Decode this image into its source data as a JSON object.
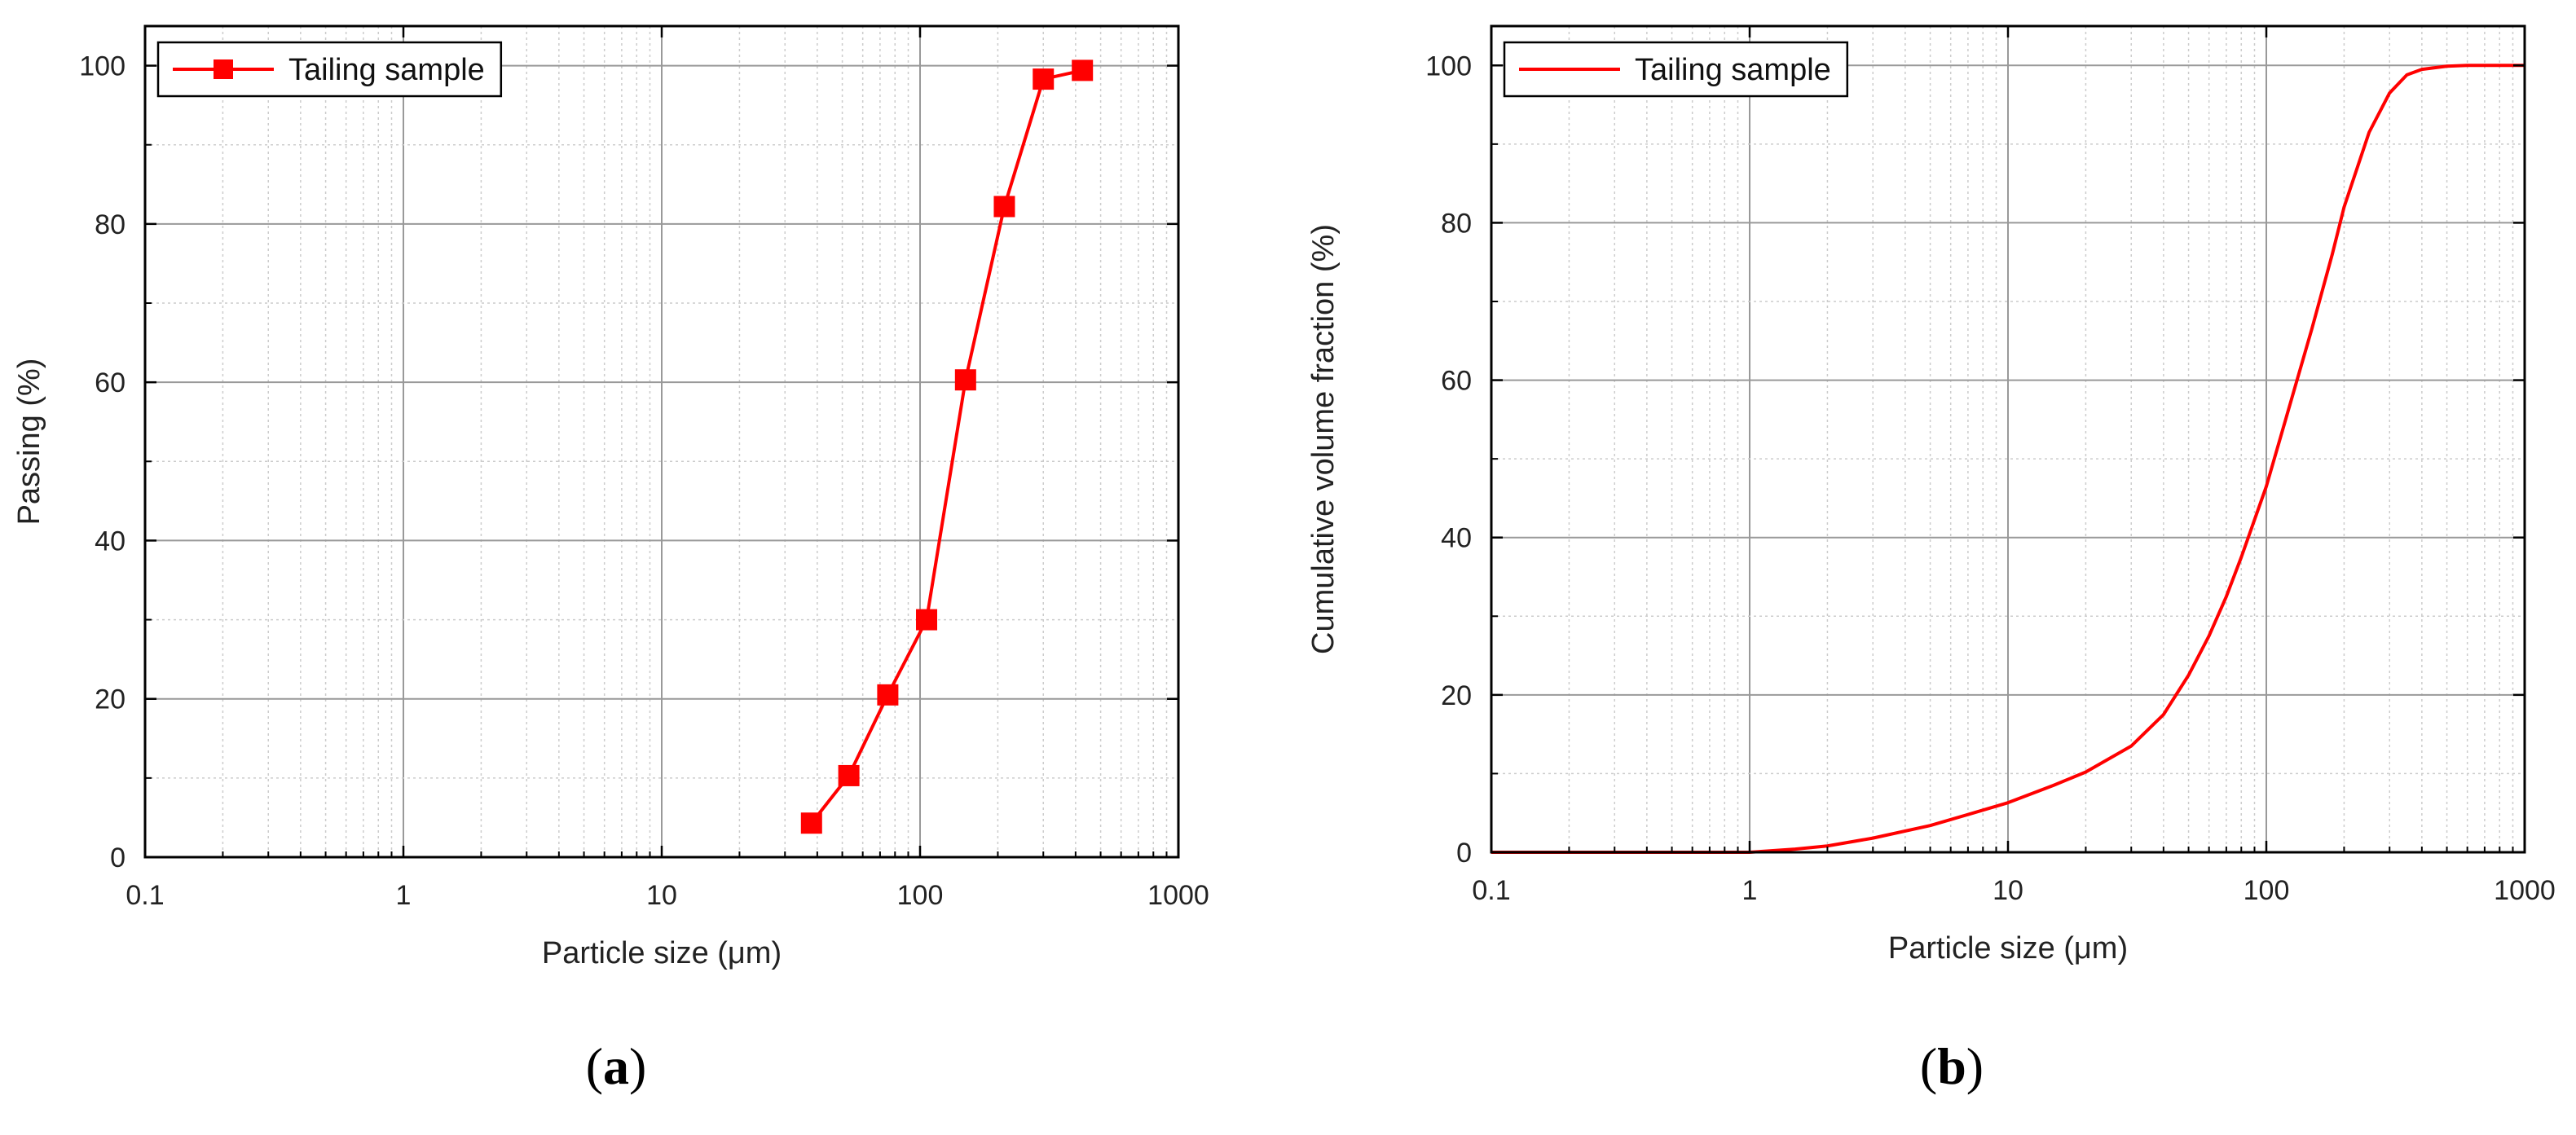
{
  "colors": {
    "series": "#ff0000",
    "grid_major": "#999999",
    "grid_minor": "#cccccc",
    "axis": "#000000"
  },
  "chart_data": [
    {
      "panel": "a",
      "panel_label": {
        "open": "(",
        "letter": "a",
        "close": ")"
      },
      "type": "line",
      "markers": true,
      "xscale": "log",
      "xlim": [
        0.1,
        1000
      ],
      "ylim": [
        0,
        105
      ],
      "xticks": [
        0.1,
        1,
        10,
        100,
        1000
      ],
      "xtick_labels": [
        "0.1",
        "1",
        "10",
        "100",
        "1000"
      ],
      "yticks": [
        0,
        20,
        40,
        60,
        80,
        100
      ],
      "ytick_labels": [
        "0",
        "20",
        "40",
        "60",
        "80",
        "100"
      ],
      "xlabel": "Particle size (μm)",
      "ylabel": "Passing (%)",
      "grid": true,
      "legend": {
        "position": "top-left",
        "entries": [
          "Tailing sample"
        ]
      },
      "series": [
        {
          "name": "Tailing sample",
          "x": [
            38,
            53,
            75,
            106,
            150,
            212,
            300,
            425
          ],
          "y": [
            4.3,
            10.3,
            20.5,
            30.0,
            60.3,
            82.2,
            98.3,
            99.4
          ]
        }
      ]
    },
    {
      "panel": "b",
      "panel_label": {
        "open": "(",
        "letter": "b",
        "close": ")"
      },
      "type": "line",
      "markers": false,
      "xscale": "log",
      "xlim": [
        0.1,
        1000
      ],
      "ylim": [
        0,
        105
      ],
      "xticks": [
        0.1,
        1,
        10,
        100,
        1000
      ],
      "xtick_labels": [
        "0.1",
        "1",
        "10",
        "100",
        "1000"
      ],
      "yticks": [
        0,
        20,
        40,
        60,
        80,
        100
      ],
      "ytick_labels": [
        "0",
        "20",
        "40",
        "60",
        "80",
        "100"
      ],
      "xlabel": "Particle size (μm)",
      "ylabel": "Cumulative volume fraction (%)",
      "grid": true,
      "legend": {
        "position": "top-left",
        "entries": [
          "Tailing sample"
        ]
      },
      "series": [
        {
          "name": "Tailing sample",
          "x": [
            0.1,
            0.5,
            1,
            1.5,
            2,
            3,
            5,
            7,
            10,
            15,
            20,
            30,
            40,
            50,
            60,
            70,
            80,
            100,
            120,
            150,
            180,
            200,
            250,
            300,
            350,
            400,
            500,
            600,
            700,
            1000
          ],
          "y": [
            0,
            0,
            0,
            0.4,
            0.8,
            1.8,
            3.4,
            4.8,
            6.3,
            8.5,
            10.2,
            13.5,
            17.5,
            22.5,
            27.5,
            32.5,
            37.5,
            46.5,
            55.5,
            66.5,
            76,
            82,
            91.5,
            96.5,
            98.8,
            99.5,
            99.9,
            100,
            100,
            100
          ]
        }
      ]
    }
  ]
}
